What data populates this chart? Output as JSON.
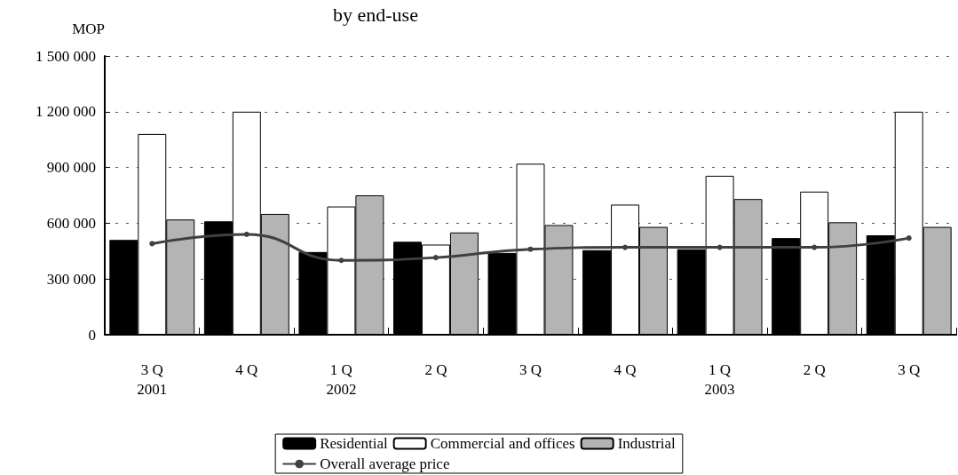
{
  "chart_data": {
    "type": "bar",
    "title": "by end-use",
    "ylabel": "MOP",
    "categories": [
      "3 Q\n2001",
      "4 Q",
      "1 Q\n2002",
      "2 Q",
      "3 Q",
      "4 Q",
      "1 Q\n2003",
      "2 Q",
      "3 Q"
    ],
    "series": [
      {
        "name": "Residential",
        "color": "#000000",
        "values": [
          510000,
          610000,
          445000,
          500000,
          440000,
          455000,
          460000,
          520000,
          535000
        ]
      },
      {
        "name": "Commercial and offices",
        "color": "#ffffff",
        "values": [
          1080000,
          1200000,
          690000,
          485000,
          920000,
          700000,
          855000,
          770000,
          1200000
        ]
      },
      {
        "name": "Industrial",
        "color": "#b4b4b4",
        "values": [
          620000,
          650000,
          750000,
          550000,
          590000,
          580000,
          730000,
          605000,
          580000
        ]
      },
      {
        "name": "Overall average price",
        "type": "line",
        "color": "#404040",
        "values": [
          490000,
          540000,
          400000,
          415000,
          460000,
          470000,
          470000,
          470000,
          520000
        ]
      }
    ],
    "ylim": [
      0,
      1500000
    ],
    "yticks": [
      0,
      {
        "value": 300000,
        "label": "300 000"
      },
      {
        "value": 600000,
        "label": "600 000"
      },
      {
        "value": 900000,
        "label": "900 000"
      },
      {
        "value": 1200000,
        "label": "1 200 000"
      },
      {
        "value": 1500000,
        "label": "1 500 000"
      }
    ],
    "grid": "y",
    "legend": "bottom",
    "marker": "circle",
    "line_style": "solid"
  }
}
